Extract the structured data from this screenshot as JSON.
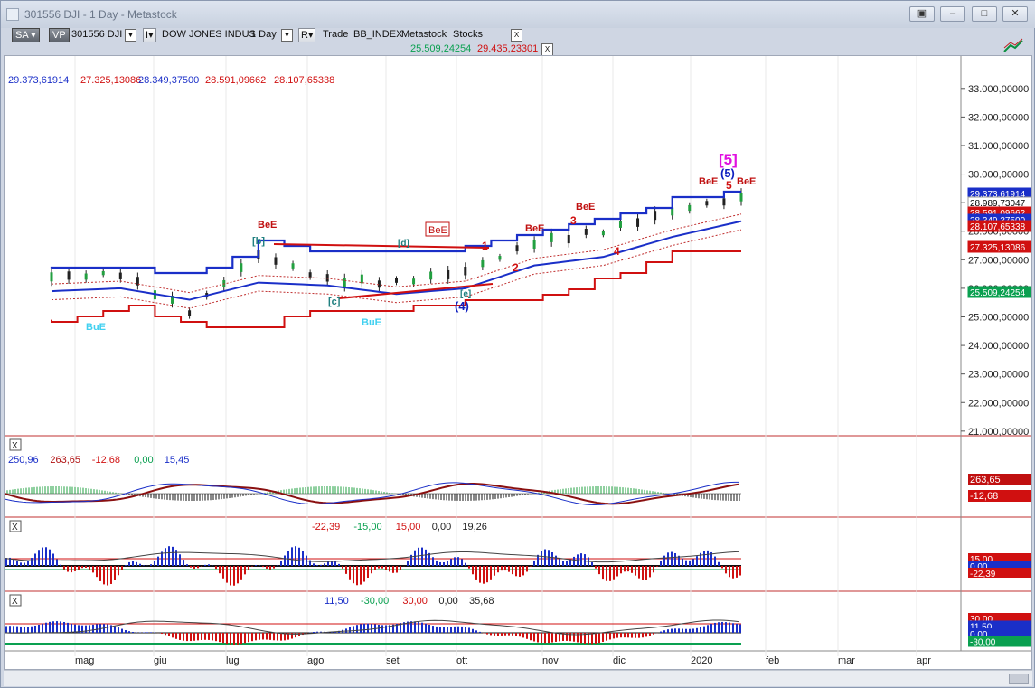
{
  "window": {
    "title": "301556 DJI - 1 Day - Metastock"
  },
  "toolbar": {
    "sa_label": "SA",
    "vp_label": "VP",
    "symbol": "301556 DJI",
    "i_label": "I",
    "name": "DOW JONES INDUS",
    "period": "1 Day",
    "r_label": "R",
    "trade": "Trade",
    "index_tag": "BB_INDEX",
    "source": "Metastock",
    "type": "Stocks",
    "close_label": "X",
    "band_low": "25.509,24254",
    "band_high": "29.435,23301"
  },
  "colors": {
    "blue": "#1a2fc8",
    "red": "#d01010",
    "green": "#0aa050",
    "cyan": "#40d0f0",
    "magenta": "#e010e0",
    "teal": "#208080"
  },
  "price_panel": {
    "readout": [
      "29.373,61914",
      "27.325,13086",
      "28.349,37500",
      "28.591,09662",
      "28.107,65338"
    ],
    "axis_labels": [
      "33.000,00000",
      "32.000,00000",
      "31.000,00000",
      "30.000,00000",
      "29.000,00000",
      "28.000,00000",
      "27.000,00000",
      "26.000,00000",
      "25.000,00000",
      "24.000,00000",
      "23.000,00000",
      "22.000,00000",
      "21.000,00000"
    ],
    "tags": [
      {
        "text": "29.373,61914",
        "bg": "#1a2fc8",
        "fg": "#ffffff"
      },
      {
        "text": "28.989,73047",
        "bg": "#ffffff",
        "fg": "#000000"
      },
      {
        "text": "28.591,09662",
        "bg": "#d01010",
        "fg": "#ffffff"
      },
      {
        "text": "28.349,37500",
        "bg": "#1a2fc8",
        "fg": "#ffffff"
      },
      {
        "text": "28.107,65338",
        "bg": "#d01010",
        "fg": "#ffffff"
      },
      {
        "text": "27.325,13086",
        "bg": "#d01010",
        "fg": "#ffffff"
      },
      {
        "text": "25.509,24254",
        "bg": "#0aa050",
        "fg": "#ffffff"
      }
    ],
    "annotations": {
      "bee": "BeE",
      "bue": "BuE",
      "w_b": "[b]",
      "w_d": "[d]",
      "w_c": "[c]",
      "w_e": "[e]",
      "w4": "(4)",
      "w5": "(5)",
      "w5big": "[5]",
      "n1": "1",
      "n2": "2",
      "n3": "3",
      "n4": "4",
      "n5": "5"
    }
  },
  "macd_panel": {
    "readout": [
      "250,96",
      "263,65",
      "-12,68",
      "0,00",
      "15,45"
    ],
    "tags": [
      {
        "text": "263,65",
        "bg": "#c01010",
        "fg": "#ffffff"
      },
      {
        "text": "-12,68",
        "bg": "#d01010",
        "fg": "#ffffff"
      }
    ]
  },
  "osc1_panel": {
    "readout": [
      "-22,39",
      "-15,00",
      "15,00",
      "0,00",
      "19,26"
    ],
    "tags": [
      {
        "text": "15,00",
        "bg": "#d01010",
        "fg": "#ffffff"
      },
      {
        "text": "0,00",
        "bg": "#1a2fc8",
        "fg": "#ffffff"
      },
      {
        "text": "-22,39",
        "bg": "#d01010",
        "fg": "#ffffff"
      }
    ]
  },
  "osc2_panel": {
    "readout": [
      "11,50",
      "-30,00",
      "30,00",
      "0,00",
      "35,68"
    ],
    "tags": [
      {
        "text": "30,00",
        "bg": "#d01010",
        "fg": "#ffffff"
      },
      {
        "text": "11,50",
        "bg": "#1a2fc8",
        "fg": "#ffffff"
      },
      {
        "text": "0,00",
        "bg": "#1a2fc8",
        "fg": "#ffffff"
      },
      {
        "text": "-30,00",
        "bg": "#0aa050",
        "fg": "#ffffff"
      }
    ]
  },
  "months": [
    "mag",
    "giu",
    "lug",
    "ago",
    "set",
    "ott",
    "nov",
    "dic",
    "2020",
    "feb",
    "mar",
    "apr"
  ],
  "chart_data": {
    "type": "line",
    "title": "",
    "x": [
      "apr",
      "mag",
      "giu",
      "lug",
      "ago",
      "set",
      "ott",
      "nov",
      "dic",
      "2020",
      "feb"
    ],
    "series": [
      {
        "values": [
          26400,
          26500,
          25200,
          27200,
          26300,
          26200,
          26600,
          27600,
          28000,
          28700,
          29200
        ]
      },
      {
        "values": [
          26700,
          26800,
          26400,
          27600,
          27300,
          27300,
          27400,
          28100,
          28400,
          29200,
          29400
        ]
      },
      {
        "values": [
          25900,
          26000,
          25600,
          26200,
          26100,
          25800,
          26000,
          26800,
          27100,
          27800,
          28350
        ]
      },
      {
        "values": [
          24900,
          25400,
          24700,
          24700,
          25300,
          25300,
          25500,
          25700,
          26400,
          27300,
          27330
        ]
      }
    ],
    "ylim": [
      21000,
      33000
    ]
  }
}
